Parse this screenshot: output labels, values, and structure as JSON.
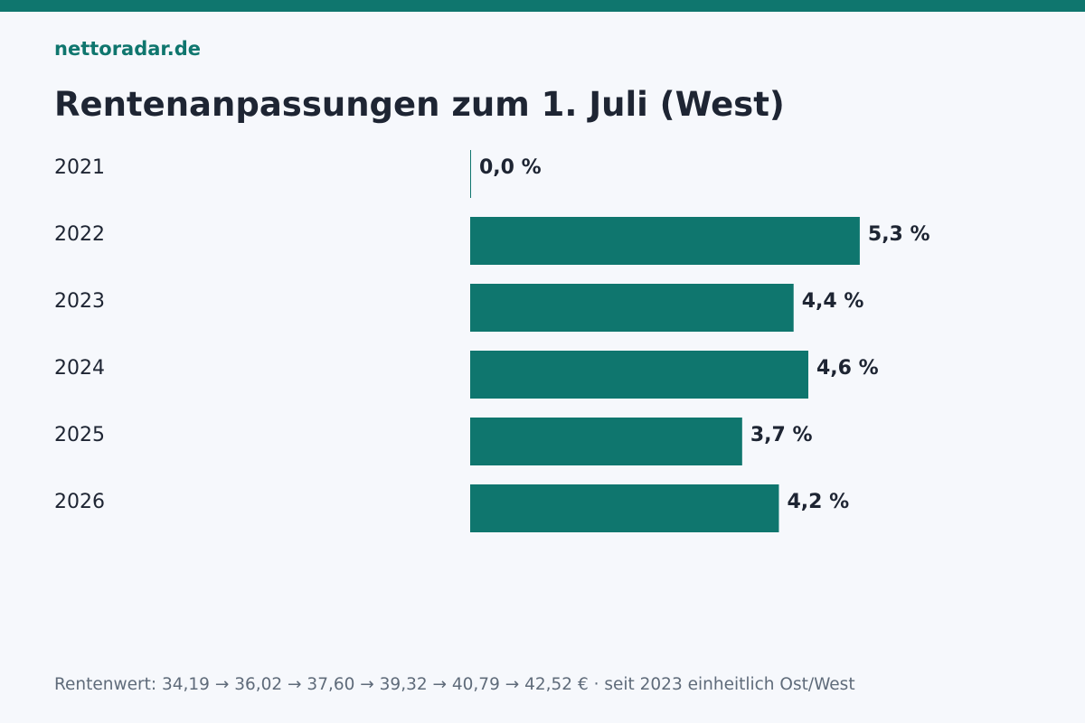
{
  "brand": "nettoradar.de",
  "title": "Rentenanpassungen zum 1. Juli (West)",
  "footnote": "Rentenwert: 34,19 → 36,02 → 37,60 → 39,32 → 40,79 → 42,52 € · seit 2023 einheitlich Ost/West",
  "colors": {
    "accent": "#0f766e",
    "text": "#1e2533",
    "muted": "#5f6b7a",
    "background": "#f6f8fc"
  },
  "chart_data": {
    "type": "bar",
    "orientation": "horizontal",
    "title": "Rentenanpassungen zum 1. Juli (West)",
    "categories": [
      "2021",
      "2022",
      "2023",
      "2024",
      "2025",
      "2026"
    ],
    "values": [
      0.0,
      5.3,
      4.4,
      4.6,
      3.7,
      4.2
    ],
    "value_labels": [
      "0,0 %",
      "5,3 %",
      "4,4 %",
      "4,6 %",
      "3,7 %",
      "4,2 %"
    ],
    "unit": "%",
    "xlim": [
      0,
      7.38
    ],
    "grid": false,
    "legend": "none"
  }
}
